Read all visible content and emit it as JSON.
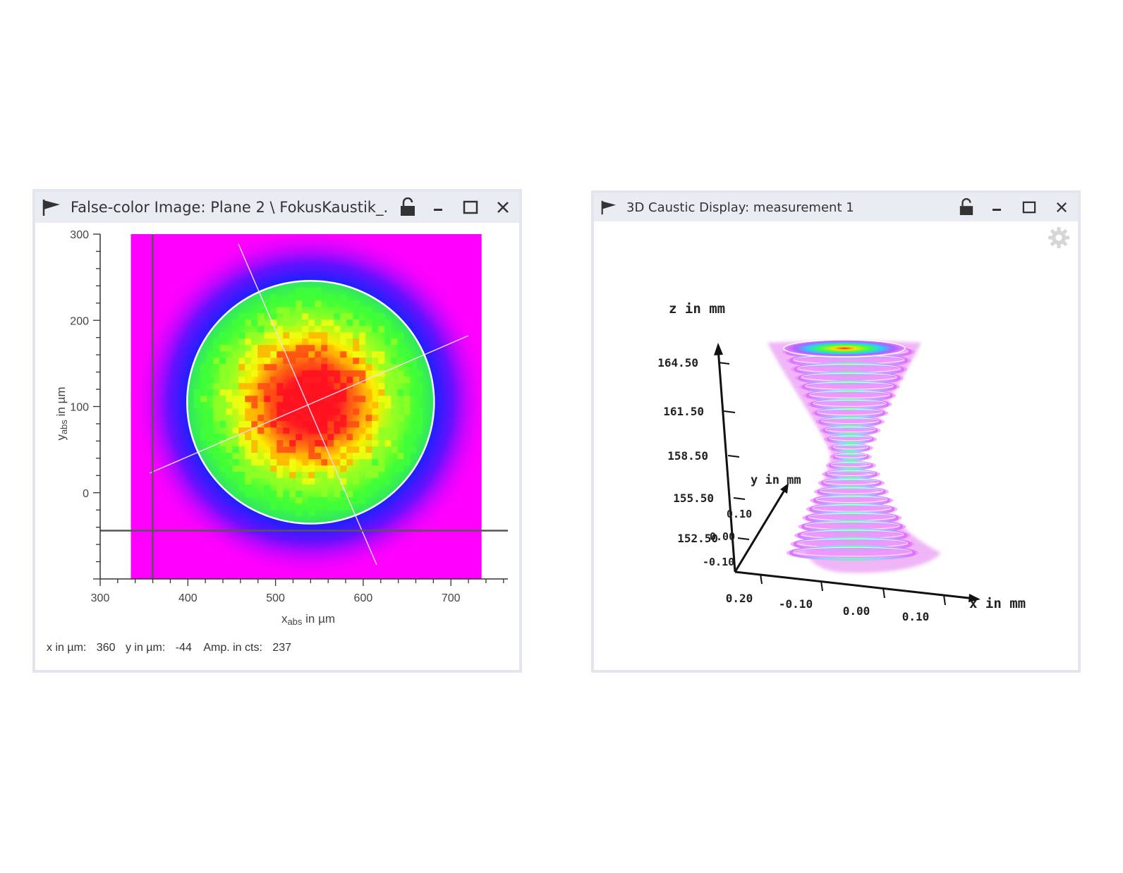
{
  "left_window": {
    "title": "False-color Image: Plane 2 \\ FokusKaustik_...",
    "flag_icon": "flag-icon",
    "lock_icon": "lock-icon",
    "controls": [
      "minimize-icon",
      "maximize-icon",
      "close-icon"
    ],
    "status": {
      "x_label": "x in µm:",
      "x_value": "360",
      "y_label": "y in µm:",
      "y_value": "-44",
      "amp_label": "Amp. in cts:",
      "amp_value": "237"
    }
  },
  "right_window": {
    "title": "3D Caustic Display: measurement 1",
    "flag_icon": "flag-icon",
    "lock_icon": "lock-icon",
    "settings_icon": "gear-icon",
    "controls": [
      "minimize-icon",
      "maximize-icon",
      "close-icon"
    ]
  },
  "chart_data": [
    {
      "type": "heatmap",
      "xlabel_main": "x",
      "xlabel_sub": "abs",
      "xlabel_rest": " in µm",
      "ylabel_main": "y",
      "ylabel_sub": "abs",
      "ylabel_rest": " in µm",
      "xlim": [
        300,
        765
      ],
      "ylim": [
        -100,
        300
      ],
      "x_ticks": [
        "300",
        "400",
        "500",
        "600",
        "700"
      ],
      "y_ticks": [
        "300",
        "200",
        "100",
        "0"
      ],
      "image_extent": {
        "x": [
          335,
          735
        ],
        "y": [
          -100,
          300
        ]
      },
      "beam_center": {
        "x": 540,
        "y": 105
      },
      "beam_radius": 140,
      "cursor": {
        "x": 360,
        "y": -44
      },
      "colors": {
        "background": "#ff00ff",
        "edge": "#2020ff",
        "ring": "#ffffff",
        "mid": "#55ff22",
        "high": "#ffee00",
        "peak": "#ff1020"
      }
    },
    {
      "type": "3d-caustic",
      "z_label": "z in mm",
      "y_label": "y in mm",
      "x_label": "x in mm",
      "z_ticks": [
        "164.50",
        "161.50",
        "158.50",
        "155.50",
        "152.50"
      ],
      "y_ticks": [
        "0.10",
        "0.00",
        "-0.10"
      ],
      "x_ticks": [
        "0.20",
        "-0.10",
        "0.00",
        "0.10"
      ],
      "z_values": [
        164.5,
        161.5,
        158.5,
        155.5,
        152.5
      ]
    }
  ]
}
